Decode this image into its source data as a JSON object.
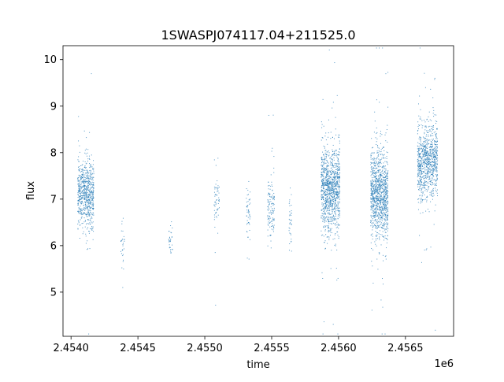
{
  "chart_data": {
    "type": "scatter",
    "title": "1SWASPJ074117.04+211525.0",
    "xlabel": "time",
    "ylabel": "flux",
    "x_offset_label": "1e6",
    "x_tick_values": [
      2.454,
      2.4545,
      2.455,
      2.4555,
      2.456,
      2.4565
    ],
    "x_tick_labels": [
      "2.4540",
      "2.4545",
      "2.4550",
      "2.4555",
      "2.4560",
      "2.4565"
    ],
    "y_tick_values": [
      5,
      6,
      7,
      8,
      9,
      10
    ],
    "y_tick_labels": [
      "5",
      "6",
      "7",
      "8",
      "9",
      "10"
    ],
    "xlim": [
      2.45394,
      2.45686
    ],
    "ylim": [
      4.05,
      10.3
    ],
    "grid": false,
    "legend": "none",
    "marker_color": "#1f77b4",
    "series": [
      {
        "clusters": [
          {
            "x_min": 2.45405,
            "x_max": 2.45417,
            "y_median": 7.1,
            "y_spread": 0.35,
            "n": 700
          },
          {
            "x_min": 2.45437,
            "x_max": 2.4544,
            "y_median": 6.0,
            "y_spread": 0.25,
            "n": 30
          },
          {
            "x_min": 2.45473,
            "x_max": 2.45476,
            "y_median": 6.0,
            "y_spread": 0.25,
            "n": 30
          },
          {
            "x_min": 2.45507,
            "x_max": 2.45511,
            "y_median": 7.0,
            "y_spread": 0.3,
            "n": 60
          },
          {
            "x_min": 2.45531,
            "x_max": 2.45534,
            "y_median": 6.7,
            "y_spread": 0.3,
            "n": 50
          },
          {
            "x_min": 2.45547,
            "x_max": 2.45552,
            "y_median": 6.8,
            "y_spread": 0.35,
            "n": 130
          },
          {
            "x_min": 2.45563,
            "x_max": 2.45565,
            "y_median": 6.5,
            "y_spread": 0.3,
            "n": 35
          },
          {
            "x_min": 2.45587,
            "x_max": 2.45601,
            "y_median": 7.2,
            "y_spread": 0.45,
            "n": 1100
          },
          {
            "x_min": 2.45624,
            "x_max": 2.45637,
            "y_median": 7.1,
            "y_spread": 0.45,
            "n": 1100
          },
          {
            "x_min": 2.45659,
            "x_max": 2.45674,
            "y_median": 7.8,
            "y_spread": 0.4,
            "n": 900
          }
        ]
      }
    ]
  }
}
